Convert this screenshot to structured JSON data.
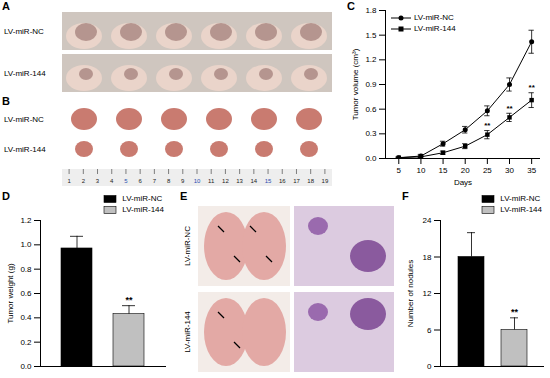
{
  "photo_panels": [
    {
      "panel": "A",
      "rows": [
        "LV-miR-NC",
        "LV-miR-144"
      ]
    },
    {
      "panel": "B",
      "rows": [
        "LV-miR-NC",
        "LV-miR-144"
      ],
      "ruler": [
        1,
        2,
        3,
        4,
        5,
        6,
        7,
        8,
        9,
        10,
        11,
        12,
        13,
        14,
        15,
        16,
        17,
        18,
        19
      ]
    },
    {
      "panel": "E",
      "rows": [
        "LV-miR-NC",
        "LV-miR-144"
      ]
    }
  ],
  "chart_data": [
    {
      "panel": "C",
      "type": "line",
      "x_label": "Days",
      "y_label": "Tumor volume (cm³)",
      "x": [
        5,
        10,
        15,
        20,
        25,
        30,
        35
      ],
      "xlim": [
        2,
        37
      ],
      "xticks": [
        5,
        10,
        15,
        20,
        25,
        30,
        35
      ],
      "ylim": [
        0,
        1.8
      ],
      "yticks": [
        {
          "value": 0,
          "label": "0.0"
        },
        0.3,
        0.6,
        0.9,
        1.2,
        1.5,
        1.8
      ],
      "legend": "top-left",
      "series": [
        {
          "name": "LV-miR-NC",
          "color": "#000000",
          "marker": "circle",
          "values": [
            0.01,
            0.03,
            0.18,
            0.35,
            0.58,
            0.9,
            1.42
          ],
          "errors": [
            0.01,
            0.02,
            0.03,
            0.04,
            0.06,
            0.08,
            0.14
          ]
        },
        {
          "name": "LV-miR-144",
          "color": "#000000",
          "marker": "square",
          "values": [
            0.01,
            0.02,
            0.07,
            0.15,
            0.29,
            0.5,
            0.71
          ],
          "errors": [
            0.005,
            0.01,
            0.02,
            0.03,
            0.05,
            0.05,
            0.09
          ],
          "significance": [
            null,
            null,
            null,
            null,
            "**",
            "**",
            "**"
          ]
        }
      ]
    },
    {
      "panel": "D",
      "type": "bar",
      "y_label": "Tumor weight (g)",
      "categories": [
        "LV-miR-NC",
        "LV-miR-144"
      ],
      "values": [
        0.97,
        0.43
      ],
      "errors": [
        0.1,
        0.07
      ],
      "colors": [
        "#000000",
        "#c0c0c0"
      ],
      "ylim": [
        0,
        1.2
      ],
      "yticks": [
        {
          "value": 0,
          "label": "0.0"
        },
        0.2,
        0.4,
        0.6,
        0.8,
        {
          "value": 1,
          "label": "1.0"
        },
        1.2
      ],
      "legend": "top-right",
      "tick_labels": "y",
      "significance": [
        null,
        "**"
      ]
    },
    {
      "panel": "F",
      "type": "bar",
      "y_label": "Number of nodules",
      "categories": [
        "LV-miR-NC",
        "LV-miR-144"
      ],
      "values": [
        18,
        6
      ],
      "errors": [
        4,
        2
      ],
      "colors": [
        "#000000",
        "#c0c0c0"
      ],
      "ylim": [
        0,
        24
      ],
      "yticks": [
        0,
        6,
        12,
        18,
        24
      ],
      "legend": "top-right",
      "tick_labels": "y",
      "significance": [
        null,
        "**"
      ]
    }
  ]
}
